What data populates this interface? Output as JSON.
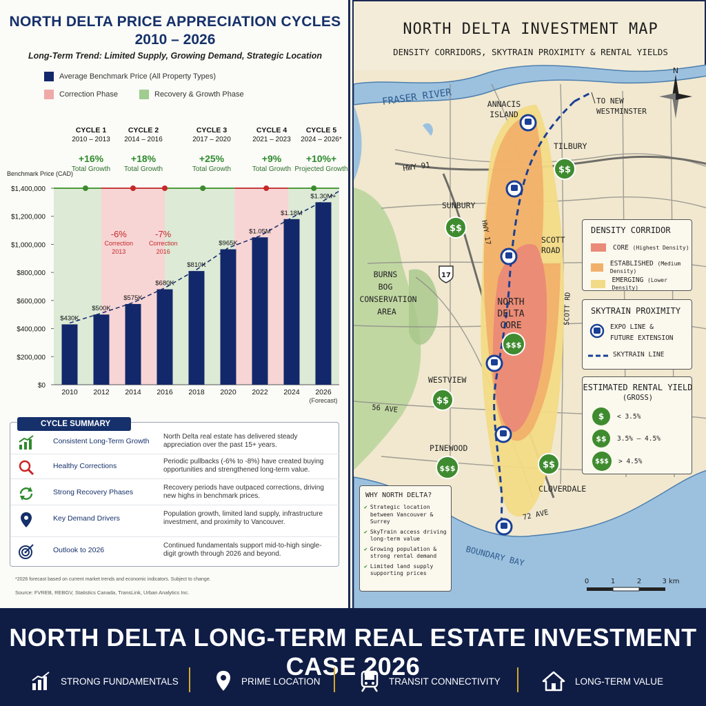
{
  "left": {
    "title_line1": "NORTH DELTA PRICE APPRECIATION CYCLES",
    "title_line2": "2010 – 2026",
    "subtitle": "Long-Term Trend: Limited Supply, Growing Demand, Strategic Location",
    "legend": {
      "avg": "Average Benchmark Price (All Property Types)",
      "correction": "Correction Phase",
      "recovery": "Recovery & Growth Phase"
    },
    "cycles": [
      {
        "name": "CYCLE 1",
        "range": "2010 – 2013",
        "pct": "+16%",
        "label": "Total Growth"
      },
      {
        "name": "CYCLE 2",
        "range": "2014 – 2016",
        "pct": "+18%",
        "label": "Total Growth"
      },
      {
        "name": "CYCLE 3",
        "range": "2017 – 2020",
        "pct": "+25%",
        "label": "Total Growth"
      },
      {
        "name": "CYCLE 4",
        "range": "2021 – 2023",
        "pct": "+9%",
        "label": "Total Growth"
      },
      {
        "name": "CYCLE 5",
        "range": "2024 – 2026*",
        "pct": "+10%+",
        "label": "Projected Growth"
      }
    ],
    "summary": {
      "title": "CYCLE SUMMARY",
      "rows": [
        {
          "head": "Consistent Long-Term Growth",
          "desc": "North Delta real estate has delivered steady appreciation over the past 15+ years."
        },
        {
          "head": "Healthy Corrections",
          "desc": "Periodic pullbacks (-6% to -8%) have created buying opportunities and strengthened long-term value."
        },
        {
          "head": "Strong Recovery Phases",
          "desc": "Recovery periods have outpaced corrections, driving new highs in benchmark prices."
        },
        {
          "head": "Key Demand Drivers",
          "desc": "Population growth, limited land supply, infrastructure investment, and proximity to Vancouver."
        },
        {
          "head": "Outlook to 2026",
          "desc": "Continued fundamentals support mid-to-high single-digit growth through 2026 and beyond."
        }
      ]
    },
    "footnote": "*2026 forecast based on current market trends and economic indicators. Subject to change.",
    "source": "Source: FVREB, REBGV, Statistics Canada, TransLink, Urban Analytics Inc."
  },
  "chart_data": {
    "type": "bar",
    "categories": [
      "2010",
      "2012",
      "2014",
      "2016",
      "2018",
      "2020",
      "2022",
      "2024",
      "2026"
    ],
    "category_note": "(Forecast)",
    "values": [
      430000,
      500000,
      575000,
      680000,
      810000,
      965000,
      1050000,
      1180000,
      1300000
    ],
    "data_labels": [
      "$430K",
      "$500K",
      "$575K",
      "$680K",
      "$810K",
      "$965K",
      "$1.05M",
      "$1.18M",
      "$1.30M+"
    ],
    "ylabel": "Benchmark Price (CAD)",
    "ylim": [
      0,
      1400000
    ],
    "yticks": [
      0,
      200000,
      400000,
      600000,
      800000,
      1000000,
      1200000,
      1400000
    ],
    "ytick_labels": [
      "$0",
      "$200,000",
      "$400,000",
      "$600,000",
      "$800,000",
      "$1,000,000",
      "$1,200,000",
      "$1,400,000"
    ],
    "trend_line": "dashed",
    "corrections": [
      {
        "pct": "-6%",
        "label": "Correction",
        "year": "2013"
      },
      {
        "pct": "-7%",
        "label": "Correction",
        "year": "2016"
      }
    ],
    "bar_color": "#13286a",
    "correction_color": "#f7d5d5",
    "recovery_color": "#dcead6"
  },
  "map": {
    "title": "NORTH DELTA INVESTMENT MAP",
    "subtitle": "DENSITY CORRIDORS, SKYTRAIN PROXIMITY & RENTAL YIELDS",
    "north": "N",
    "labels": {
      "fraser": "FRASER RIVER",
      "annacis1": "ANNACIS",
      "annacis2": "ISLAND",
      "newwest1": "TO NEW",
      "newwest2": "WESTMINSTER",
      "hwy91": "HWY 91",
      "tilbury": "TILBURY",
      "sunbury": "SUNBURY",
      "hwy17": "HWY 17",
      "scott1": "SCOTT",
      "scott2": "ROAD",
      "hwy17shield": "17",
      "burns1": "BURNS",
      "burns2": "BOG",
      "burns3": "CONSERVATION",
      "burns4": "AREA",
      "core1": "NORTH",
      "core2": "DELTA",
      "core3": "CORE",
      "scottrd": "SCOTT RD",
      "westview": "WESTVIEW",
      "ave56": "56 AVE",
      "pinewood": "PINEWOOD",
      "cloverdale": "CLOVERDALE",
      "ave72": "72 AVE",
      "boundary": "BOUNDARY BAY"
    },
    "density": {
      "title": "DENSITY CORRIDOR",
      "items": [
        {
          "label": "CORE",
          "note": "(Highest Density)"
        },
        {
          "label": "ESTABLISHED",
          "note": "(Medium Density)"
        },
        {
          "label": "EMERGING",
          "note": "(Lower Density)"
        }
      ],
      "colors": [
        "#ea8a78",
        "#f1b06a",
        "#f2db86"
      ]
    },
    "skytrain": {
      "title": "SKYTRAIN PROXIMITY",
      "expo1": "EXPO LINE &",
      "expo2": "FUTURE EXTENSION",
      "line": "SKYTRAIN LINE"
    },
    "yield": {
      "title": "ESTIMATED RENTAL YIELD",
      "subtitle": "(GROSS)",
      "items": [
        {
          "sym": "$",
          "label": "< 3.5%"
        },
        {
          "sym": "$$",
          "label": "3.5% – 4.5%"
        },
        {
          "sym": "$$$",
          "label": "> 4.5%"
        }
      ]
    },
    "why": {
      "title": "WHY NORTH DELTA?",
      "items": [
        "Strategic location between Vancouver & Surrey",
        "SkyTrain access driving long-term value",
        "Growing population & strong rental demand",
        "Limited land supply supporting prices"
      ]
    },
    "scale": {
      "labels": [
        "0",
        "1",
        "2",
        "3 km"
      ]
    }
  },
  "banner": {
    "title": "NORTH DELTA LONG-TERM REAL ESTATE INVESTMENT CASE 2026",
    "items": [
      "STRONG FUNDAMENTALS",
      "PRIME LOCATION",
      "TRANSIT CONNECTIVITY",
      "LONG-TERM VALUE"
    ],
    "accent": "#d7a92a"
  }
}
